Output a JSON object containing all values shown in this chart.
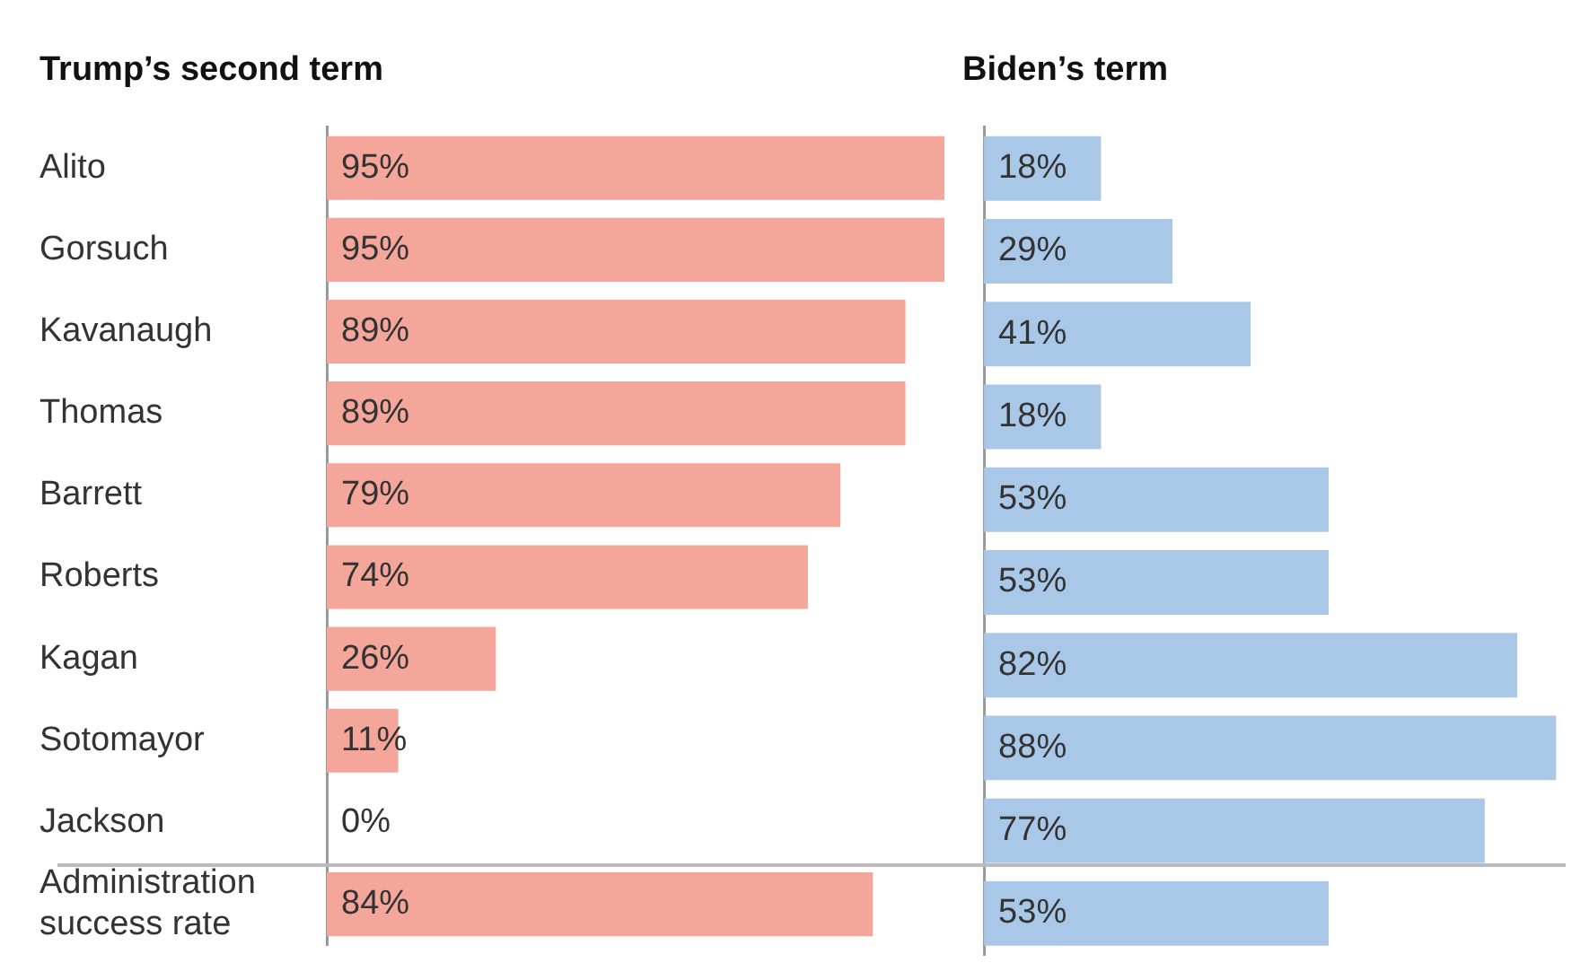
{
  "chart_data": [
    {
      "type": "bar",
      "orientation": "horizontal",
      "title": "Trump’s second term",
      "categories": [
        "Alito",
        "Gorsuch",
        "Kavanaugh",
        "Thomas",
        "Barrett",
        "Roberts",
        "Kagan",
        "Sotomayor",
        "Jackson",
        "Administration success rate"
      ],
      "values": [
        95,
        95,
        89,
        89,
        79,
        74,
        26,
        11,
        0,
        84
      ],
      "value_labels": [
        "95%",
        "95%",
        "89%",
        "89%",
        "79%",
        "74%",
        "26%",
        "11%",
        "0%",
        "84%"
      ],
      "color": "#f4a69a",
      "tick_labels": "y"
    },
    {
      "type": "bar",
      "orientation": "horizontal",
      "title": "Biden’s term",
      "categories": [
        null,
        null,
        null,
        null,
        null,
        null,
        null,
        null,
        null,
        null
      ],
      "values": [
        18,
        29,
        41,
        18,
        53,
        53,
        82,
        88,
        77,
        53
      ],
      "value_labels": [
        "18%",
        "29%",
        "41%",
        "18%",
        "53%",
        "53%",
        "82%",
        "88%",
        "77%",
        "53%"
      ],
      "color": "#a9c8e8",
      "tick_labels": false
    }
  ]
}
